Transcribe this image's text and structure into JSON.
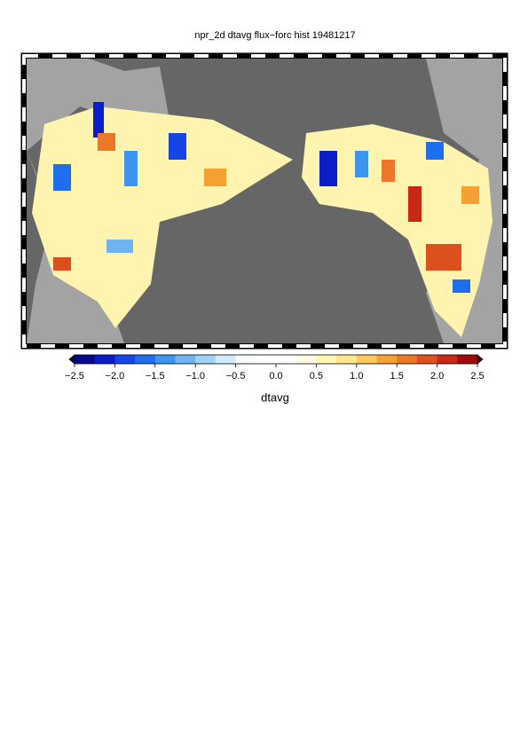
{
  "title": "npr_2d dtavg flux−forc hist 19481217",
  "colorbar": {
    "min": -2.5,
    "max": 2.5,
    "colors": [
      "#08088c",
      "#0a1ec8",
      "#1446e6",
      "#1f6ef0",
      "#3c96f0",
      "#6eb4f0",
      "#a0d2f5",
      "#d2ebfa",
      "#f5fafa",
      "#ffffff",
      "#ffffff",
      "#fffae6",
      "#fff5b4",
      "#ffe68c",
      "#ffc85a",
      "#f5a032",
      "#eb7828",
      "#dc501e",
      "#c82814",
      "#a00a0a"
    ],
    "low_color": "#050550",
    "high_color": "#5a0000",
    "ticks": [
      {
        "value": -2.5,
        "label": "−2.5"
      },
      {
        "value": -2.0,
        "label": "−2.0"
      },
      {
        "value": -1.5,
        "label": "−1.5"
      },
      {
        "value": -1.0,
        "label": "−1.0"
      },
      {
        "value": -0.5,
        "label": "−0.5"
      },
      {
        "value": 0,
        "label": "0.0"
      },
      0.5,
      {
        "value": 1,
        "label": "1.0"
      },
      1.5,
      {
        "value": 2,
        "label": "2.0"
      },
      2.5
    ],
    "label": "dtavg"
  }
}
